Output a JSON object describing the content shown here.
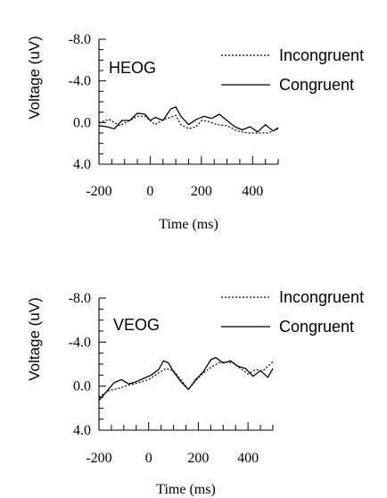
{
  "chart_data": [
    {
      "type": "line",
      "panel_label": "HEOG",
      "xlabel": "Time (ms)",
      "ylabel": "Voltage (uV)",
      "xlim": [
        -200,
        500
      ],
      "ylim": [
        -8,
        4
      ],
      "y_inverted": true,
      "xticks": [
        -200,
        0,
        200,
        400
      ],
      "xtick_labels": [
        "-200",
        "0",
        "200",
        "400"
      ],
      "yticks": [
        -8,
        -4,
        0,
        4
      ],
      "ytick_labels": [
        "-8.0",
        "-4.0",
        "0.0",
        "4.0"
      ],
      "grid": false,
      "legend_position": "top-right",
      "series": [
        {
          "name": "Incongruent",
          "style": "dotted",
          "x": [
            -200,
            -160,
            -120,
            -80,
            -50,
            -20,
            0,
            20,
            50,
            80,
            100,
            120,
            150,
            180,
            200,
            230,
            260,
            300,
            340,
            380,
            420,
            460,
            500
          ],
          "y": [
            0.0,
            -0.3,
            0.3,
            -0.2,
            -0.6,
            -0.6,
            -0.2,
            0.2,
            -0.3,
            -0.5,
            -0.7,
            0.2,
            0.6,
            0.4,
            -0.2,
            -0.1,
            0.2,
            0.3,
            0.8,
            1.0,
            1.0,
            1.0,
            0.6
          ]
        },
        {
          "name": "Congruent",
          "style": "solid",
          "x": [
            -200,
            -170,
            -140,
            -110,
            -80,
            -50,
            -20,
            0,
            20,
            50,
            80,
            100,
            120,
            150,
            180,
            210,
            240,
            270,
            300,
            330,
            360,
            390,
            420,
            450,
            480,
            500
          ],
          "y": [
            0.3,
            0.4,
            0.6,
            -0.2,
            -0.2,
            -0.9,
            -0.8,
            -0.2,
            -0.5,
            -0.2,
            -1.3,
            -1.5,
            -0.6,
            0.2,
            -0.3,
            -0.6,
            -0.4,
            -0.8,
            -0.2,
            0.4,
            0.7,
            0.4,
            0.9,
            0.2,
            0.8,
            0.5
          ]
        }
      ]
    },
    {
      "type": "line",
      "panel_label": "VEOG",
      "xlabel": "Time (ms)",
      "ylabel": "Voltage (uV)",
      "xlim": [
        -200,
        500
      ],
      "ylim": [
        -8,
        4
      ],
      "y_inverted": true,
      "xticks": [
        -200,
        0,
        200,
        400
      ],
      "xtick_labels": [
        "-200",
        "0",
        "200",
        "400"
      ],
      "yticks": [
        -8,
        -4,
        0,
        4
      ],
      "ytick_labels": [
        "-8.0",
        "-4.0",
        "0.0",
        "4.0"
      ],
      "grid": false,
      "legend_position": "top-right",
      "series": [
        {
          "name": "Incongruent",
          "style": "dotted",
          "x": [
            -200,
            -160,
            -120,
            -80,
            -40,
            0,
            40,
            70,
            100,
            130,
            160,
            190,
            220,
            250,
            280,
            310,
            340,
            370,
            400,
            430,
            460,
            500
          ],
          "y": [
            1.0,
            0.4,
            0.2,
            -0.1,
            -0.3,
            -0.6,
            -1.2,
            -1.6,
            -1.4,
            -0.6,
            0.3,
            -0.5,
            -1.2,
            -1.7,
            -2.1,
            -2.2,
            -2.1,
            -1.6,
            -1.1,
            -1.5,
            -1.4,
            -2.2
          ]
        },
        {
          "name": "Congruent",
          "style": "solid",
          "x": [
            -200,
            -170,
            -140,
            -110,
            -80,
            -50,
            -20,
            10,
            40,
            60,
            80,
            100,
            130,
            160,
            190,
            220,
            250,
            270,
            300,
            330,
            360,
            390,
            420,
            450,
            480,
            500
          ],
          "y": [
            1.3,
            0.5,
            -0.3,
            -0.6,
            -0.2,
            -0.4,
            -0.7,
            -1.0,
            -1.5,
            -2.3,
            -2.1,
            -1.3,
            -0.4,
            0.3,
            -0.6,
            -1.3,
            -2.4,
            -2.6,
            -2.1,
            -2.3,
            -1.8,
            -1.6,
            -0.9,
            -1.4,
            -0.8,
            -1.6
          ]
        }
      ]
    }
  ]
}
